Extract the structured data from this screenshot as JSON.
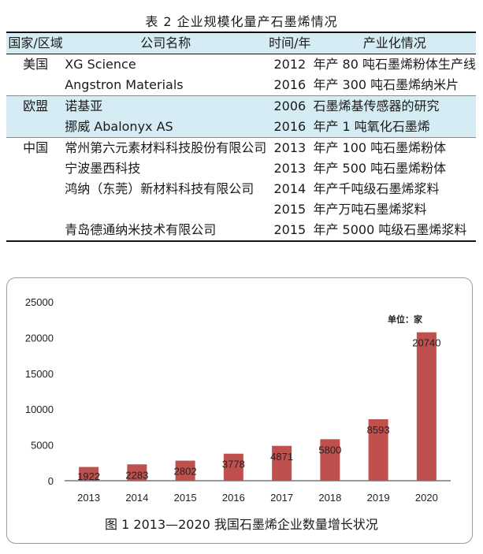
{
  "table": {
    "caption": "表 2  企业规模化量产石墨烯情况",
    "headers": [
      "国家/区域",
      "公司名称",
      "时间/年",
      "产业化情况"
    ],
    "rows": [
      {
        "region": "美国",
        "company": "XG Science",
        "year": "2012",
        "status": "年产 80 吨石墨烯粉体生产线",
        "band": false,
        "group_start": true
      },
      {
        "region": "",
        "company": "Angstron Materials",
        "year": "2016",
        "status": "年产 300 吨石墨烯纳米片",
        "band": false,
        "group_start": false
      },
      {
        "region": "欧盟",
        "company": "诺基亚",
        "year": "2006",
        "status": "石墨烯基传感器的研究",
        "band": true,
        "group_start": true
      },
      {
        "region": "",
        "company": "挪威 Abalonyx AS",
        "year": "2016",
        "status": "年产 1 吨氧化石墨烯",
        "band": true,
        "group_start": false
      },
      {
        "region": "中国",
        "company": "常州第六元素材料科技股份有限公司",
        "year": "2013",
        "status": "年产 100 吨石墨烯粉体",
        "band": false,
        "group_start": true
      },
      {
        "region": "",
        "company": "宁波墨西科技",
        "year": "2013",
        "status": "年产 500 吨石墨烯粉体",
        "band": false,
        "group_start": false
      },
      {
        "region": "",
        "company": "鸿纳（东莞）新材料科技有限公司",
        "year": "2014",
        "status": "年产千吨级石墨烯浆料",
        "band": false,
        "group_start": false
      },
      {
        "region": "",
        "company": "",
        "year": "2015",
        "status": "年产万吨石墨烯浆料",
        "band": false,
        "group_start": false
      },
      {
        "region": "",
        "company": "青岛德通纳米技术有限公司",
        "year": "2015",
        "status": "年产 5000 吨级石墨烯浆料",
        "band": false,
        "group_start": false
      }
    ]
  },
  "figure": {
    "caption": "图 1  2013—2020 我国石墨烯企业数量增长状况",
    "unit_label": "单位：家"
  },
  "chart_data": {
    "type": "bar",
    "categories": [
      "2013",
      "2014",
      "2015",
      "2016",
      "2017",
      "2018",
      "2019",
      "2020"
    ],
    "values": [
      1922,
      2283,
      2802,
      3778,
      4871,
      5800,
      8593,
      20740
    ],
    "data_labels": [
      "1922",
      "2283",
      "2802",
      "3778",
      "4871",
      "5800",
      "8593",
      "20740"
    ],
    "ylim": [
      0,
      25000
    ],
    "yticks": [
      0,
      5000,
      10000,
      15000,
      20000,
      25000
    ],
    "ytick_labels": [
      "0",
      "5000",
      "10000",
      "15000",
      "20000",
      "25000"
    ],
    "grid": false,
    "bar_color": "#c0504d"
  }
}
